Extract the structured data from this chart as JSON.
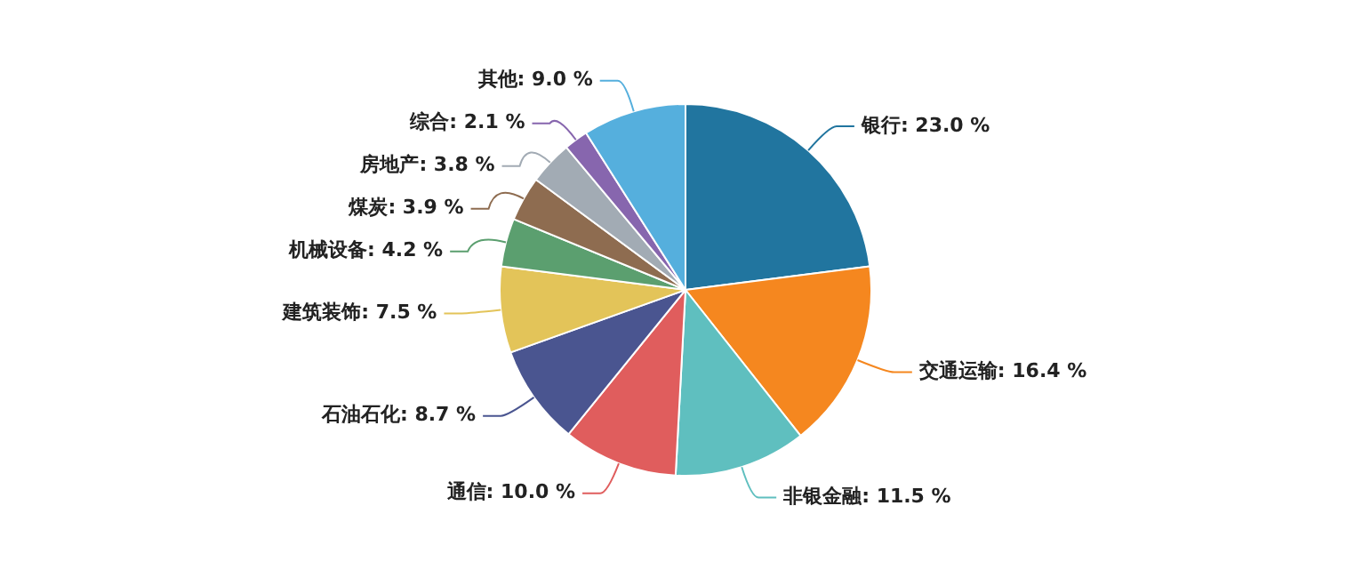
{
  "chart_data": {
    "type": "pie",
    "categories": [
      "银行",
      "交通运输",
      "非银金融",
      "通信",
      "石油石化",
      "建筑装饰",
      "机械设备",
      "煤炭",
      "房地产",
      "综合",
      "其他"
    ],
    "values": [
      23.0,
      16.4,
      11.5,
      10.0,
      8.7,
      7.5,
      4.2,
      3.9,
      3.8,
      2.1,
      9.0
    ],
    "value_labels": [
      "23.0 %",
      "16.4 %",
      "11.5 %",
      "10.0 %",
      "8.7 %",
      "7.5 %",
      "4.2 %",
      "3.9 %",
      "3.8 %",
      "2.1 %",
      "9.0 %"
    ],
    "colors": [
      "#21759f",
      "#f5871f",
      "#5fbfbf",
      "#e05d5d",
      "#4a5590",
      "#e3c459",
      "#5b9f6f",
      "#8e6c50",
      "#a2abb4",
      "#8766ae",
      "#55afdd"
    ],
    "legend": false
  }
}
